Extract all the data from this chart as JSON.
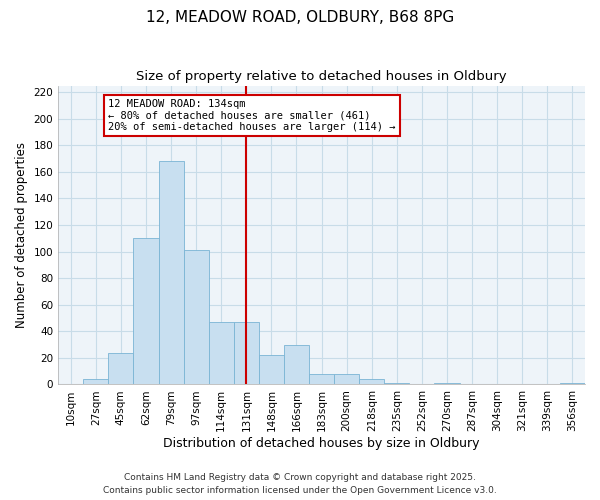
{
  "title1": "12, MEADOW ROAD, OLDBURY, B68 8PG",
  "title2": "Size of property relative to detached houses in Oldbury",
  "xlabel": "Distribution of detached houses by size in Oldbury",
  "ylabel": "Number of detached properties",
  "footnote1": "Contains HM Land Registry data © Crown copyright and database right 2025.",
  "footnote2": "Contains public sector information licensed under the Open Government Licence v3.0.",
  "bar_labels": [
    "10sqm",
    "27sqm",
    "45sqm",
    "62sqm",
    "79sqm",
    "97sqm",
    "114sqm",
    "131sqm",
    "148sqm",
    "166sqm",
    "183sqm",
    "200sqm",
    "218sqm",
    "235sqm",
    "252sqm",
    "270sqm",
    "287sqm",
    "304sqm",
    "321sqm",
    "339sqm",
    "356sqm"
  ],
  "bar_heights": [
    0,
    4,
    24,
    110,
    168,
    101,
    47,
    47,
    22,
    30,
    8,
    8,
    4,
    1,
    0,
    1,
    0,
    0,
    0,
    0,
    1
  ],
  "bar_color": "#c8dff0",
  "bar_edgecolor": "#7ab4d4",
  "vline_x_index": 7,
  "vline_color": "#cc0000",
  "annotation_line1": "12 MEADOW ROAD: 134sqm",
  "annotation_line2": "← 80% of detached houses are smaller (461)",
  "annotation_line3": "20% of semi-detached houses are larger (114) →",
  "annotation_box_edgecolor": "#cc0000",
  "annotation_box_facecolor": "#ffffff",
  "ylim": [
    0,
    225
  ],
  "yticks": [
    0,
    20,
    40,
    60,
    80,
    100,
    120,
    140,
    160,
    180,
    200,
    220
  ],
  "grid_color": "#c8dce8",
  "title1_fontsize": 11,
  "title2_fontsize": 9.5,
  "xlabel_fontsize": 9,
  "ylabel_fontsize": 8.5,
  "tick_fontsize": 7.5,
  "annotation_fontsize": 7.5,
  "footnote_fontsize": 6.5,
  "axes_facecolor": "#eef4f9"
}
